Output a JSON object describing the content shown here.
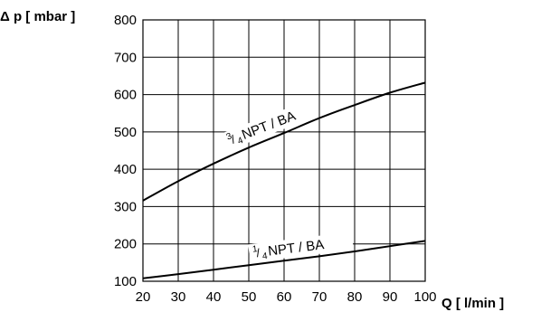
{
  "chart_data": {
    "type": "line",
    "ylabel": "Δ p [ mbar ]",
    "xlabel": "Q [ l/min ]",
    "xlim": [
      20,
      100
    ],
    "ylim": [
      100,
      800
    ],
    "xticks": [
      20,
      30,
      40,
      50,
      60,
      70,
      80,
      90,
      100
    ],
    "yticks": [
      100,
      200,
      300,
      400,
      500,
      600,
      700,
      800
    ],
    "grid": true,
    "series": [
      {
        "name": "3/4 NPT / BA",
        "label_num": "3",
        "label_den": "4",
        "label_rest": " NPT / BA",
        "x": [
          20,
          30,
          40,
          50,
          60,
          70,
          80,
          90,
          100
        ],
        "y": [
          316,
          368,
          415,
          458,
          497,
          537,
          572,
          605,
          632
        ]
      },
      {
        "name": "1/4 NPT / BA",
        "label_num": "1",
        "label_den": "4",
        "label_rest": " NPT / BA",
        "x": [
          20,
          30,
          40,
          50,
          60,
          70,
          80,
          90,
          100
        ],
        "y": [
          108,
          119,
          131,
          143,
          155,
          167,
          180,
          194,
          208
        ]
      }
    ]
  }
}
